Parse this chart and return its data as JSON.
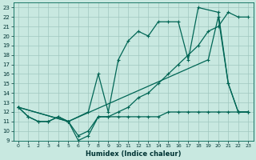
{
  "xlabel": "Humidex (Indice chaleur)",
  "xlim": [
    -0.5,
    23.5
  ],
  "ylim": [
    9,
    23.5
  ],
  "yticks": [
    9,
    10,
    11,
    12,
    13,
    14,
    15,
    16,
    17,
    18,
    19,
    20,
    21,
    22,
    23
  ],
  "xticks": [
    0,
    1,
    2,
    3,
    4,
    5,
    6,
    7,
    8,
    9,
    10,
    11,
    12,
    13,
    14,
    15,
    16,
    17,
    18,
    19,
    20,
    21,
    22,
    23
  ],
  "bg_color": "#c8e8e0",
  "grid_color": "#a0c8c0",
  "line_color": "#006655",
  "line_width": 0.9,
  "marker": "+",
  "marker_size": 3.5,
  "marker_ew": 0.8,
  "series1_x": [
    0,
    1,
    2,
    3,
    4,
    5,
    6,
    7,
    8,
    9,
    10,
    11,
    12,
    13,
    14,
    15,
    16,
    17,
    18,
    19,
    20,
    21,
    22,
    23
  ],
  "series1_y": [
    12.5,
    11.5,
    11.0,
    11.0,
    11.5,
    11.0,
    9.0,
    9.5,
    11.5,
    11.5,
    12.0,
    12.5,
    13.5,
    14.0,
    15.0,
    16.0,
    17.0,
    18.0,
    19.0,
    20.5,
    21.0,
    22.5,
    22.0,
    22.0
  ],
  "series2_x": [
    0,
    1,
    2,
    3,
    4,
    5,
    6,
    7,
    8,
    9,
    10,
    11,
    12,
    13,
    14,
    15,
    16,
    17,
    18,
    19,
    20,
    21,
    22,
    23
  ],
  "series2_y": [
    12.5,
    11.5,
    11.0,
    11.0,
    11.5,
    11.0,
    9.5,
    10.0,
    11.5,
    11.5,
    11.5,
    11.5,
    11.5,
    11.5,
    11.5,
    12.0,
    12.0,
    12.0,
    12.0,
    12.0,
    12.0,
    12.0,
    12.0,
    12.0
  ],
  "series3_x": [
    0,
    5,
    7,
    8,
    9,
    10,
    11,
    12,
    13,
    14,
    15,
    16,
    17,
    18,
    20,
    21,
    22,
    23
  ],
  "series3_y": [
    12.5,
    11.0,
    12.0,
    16.0,
    12.0,
    17.5,
    19.5,
    20.5,
    20.0,
    21.5,
    21.5,
    21.5,
    17.5,
    23.0,
    22.5,
    15.0,
    12.0,
    12.0
  ],
  "series4_x": [
    0,
    5,
    19,
    20,
    21,
    22,
    23
  ],
  "series4_y": [
    12.5,
    11.0,
    17.5,
    22.0,
    15.0,
    12.0,
    12.0
  ]
}
